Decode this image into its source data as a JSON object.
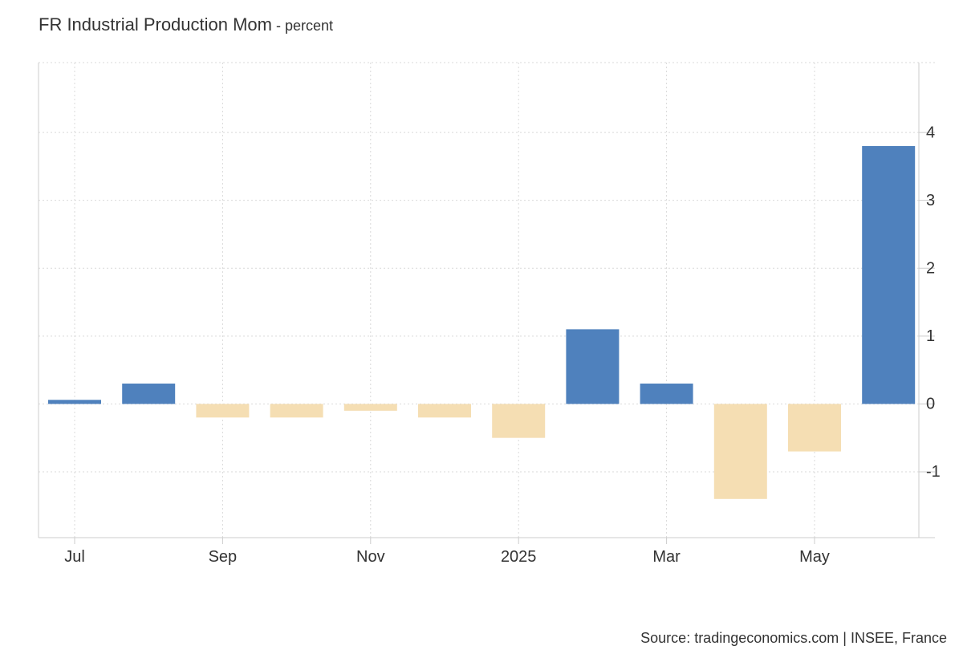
{
  "title": "FR Industrial Production Mom",
  "subtitle_separator": " - ",
  "subtitle": "percent",
  "source": "Source: tradingeconomics.com | INSEE, France",
  "colors": {
    "positive": "#4f81bd",
    "negative": "#f5deb3",
    "grid": "#d9d9d9",
    "axis": "#cccccc",
    "text": "#333333"
  },
  "chart_data": {
    "type": "bar",
    "categories": [
      "2024-07",
      "2024-08",
      "2024-09",
      "2024-10",
      "2024-11",
      "2024-12",
      "2025-01",
      "2025-02",
      "2025-03",
      "2025-04",
      "2025-05",
      "2025-06"
    ],
    "values": [
      0.06,
      0.3,
      -0.2,
      -0.2,
      -0.1,
      -0.2,
      -0.5,
      1.1,
      0.3,
      -1.4,
      -0.7,
      3.8
    ],
    "x_tick_labels": [
      {
        "category": "2024-07",
        "label": "Jul"
      },
      {
        "category": "2024-09",
        "label": "Sep"
      },
      {
        "category": "2024-11",
        "label": "Nov"
      },
      {
        "category": "2025-01",
        "label": "2025"
      },
      {
        "category": "2025-03",
        "label": "Mar"
      },
      {
        "category": "2025-05",
        "label": "May"
      }
    ],
    "y_ticks": [
      4,
      3,
      2,
      1,
      0,
      -1
    ],
    "ylim": [
      -1.97,
      5.03
    ],
    "y_axis_side": "right",
    "grid": true,
    "grid_style": "dotted",
    "legend": false,
    "xlabel": "",
    "ylabel": ""
  }
}
